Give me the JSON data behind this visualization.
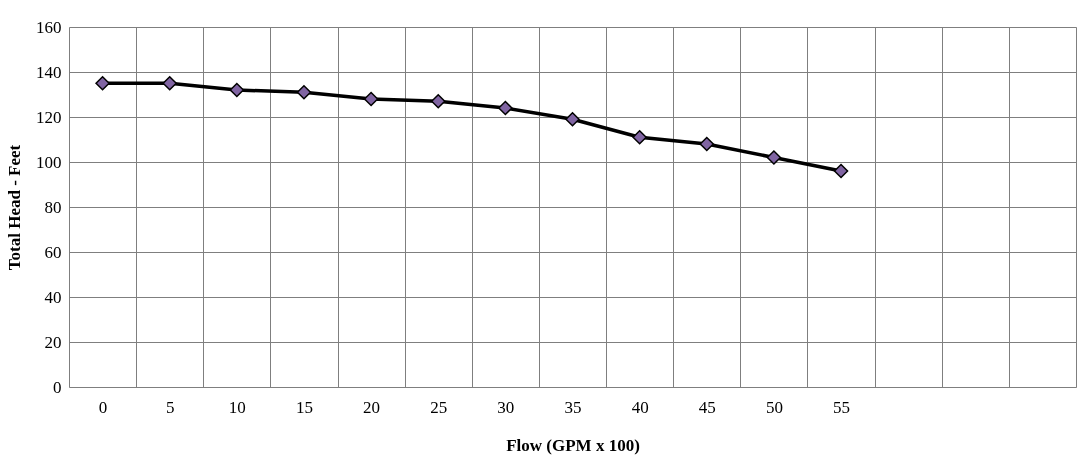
{
  "chart_data": {
    "type": "line",
    "xlabel": "Flow (GPM x 100)",
    "ylabel": "Total Head  - Feet",
    "categories": [
      "0",
      "5",
      "10",
      "15",
      "20",
      "25",
      "30",
      "35",
      "40",
      "45",
      "50",
      "55",
      null,
      null,
      null
    ],
    "series": [
      {
        "color": "#000000",
        "values": [
          135,
          135,
          132,
          131,
          128,
          127,
          124,
          119,
          111,
          108,
          102,
          96,
          null,
          null,
          null
        ]
      }
    ],
    "ylim": [
      0,
      160
    ],
    "yticks": [
      0,
      20,
      40,
      60,
      80,
      100,
      120,
      140,
      160
    ],
    "grid": true,
    "marker": "diamond",
    "line_style": "solid"
  }
}
